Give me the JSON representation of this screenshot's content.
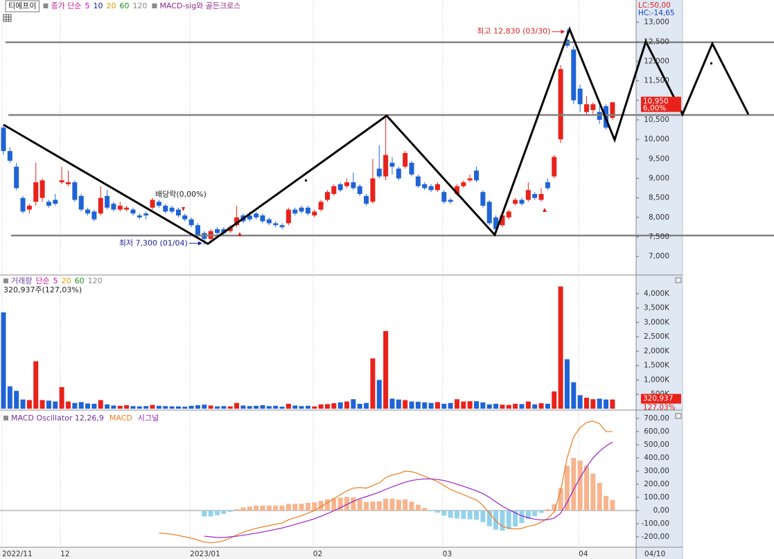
{
  "chart_data": [
    {
      "type": "candlestick",
      "title": "티에프이",
      "legend_title": "종가 단순",
      "legend_title_color": "#c21f9a",
      "ma_legend": [
        {
          "name": "5",
          "color": "#cc00cc"
        },
        {
          "name": "10",
          "color": "#1a1a8c"
        },
        {
          "name": "20",
          "color": "#e0a000"
        },
        {
          "name": "60",
          "color": "#1e8c1e"
        },
        {
          "name": "120",
          "color": "#888888"
        }
      ],
      "indicator": "MACD-sig와 골든크로스",
      "indicator_color": "#8a2a8a",
      "lc_label": "LC:50,00",
      "hc_label": "HC:-14,65",
      "annotations": [
        {
          "text": "최고 12,830 (03/30)",
          "value": 12830,
          "color": "#e02020"
        },
        {
          "text": "최저 7,300 (01/04)",
          "value": 7300,
          "color": "#1a1aa0"
        },
        {
          "text": "배당락(0,00%)"
        }
      ],
      "last_price": {
        "value": 10950,
        "label": "10,950"
      },
      "change_label": "6,00%",
      "cursor_date": "04/10",
      "up_color": "#e8221b",
      "down_color": "#1f63d6",
      "categories": [
        "2022/11",
        null,
        null,
        null,
        null,
        null,
        null,
        null,
        null,
        "12",
        null,
        null,
        null,
        null,
        null,
        null,
        null,
        null,
        null,
        null,
        null,
        null,
        null,
        null,
        null,
        null,
        null,
        null,
        null,
        "2023/01",
        null,
        null,
        null,
        null,
        null,
        null,
        null,
        null,
        null,
        null,
        null,
        null,
        null,
        null,
        null,
        null,
        null,
        null,
        "02",
        null,
        null,
        null,
        null,
        null,
        null,
        null,
        null,
        null,
        null,
        null,
        null,
        null,
        null,
        null,
        null,
        null,
        null,
        null,
        "03",
        null,
        null,
        null,
        null,
        null,
        null,
        null,
        null,
        null,
        null,
        null,
        null,
        null,
        null,
        null,
        null,
        null,
        null,
        null,
        null,
        "04",
        null,
        null,
        null,
        null,
        null
      ],
      "open": [
        10300,
        9700,
        9300,
        8500,
        8200,
        8400,
        8500,
        8400,
        8450,
        8900,
        8850,
        8900,
        8550,
        8200,
        8150,
        8100,
        8550,
        8350,
        8200,
        8200,
        8200,
        8050,
        8100,
        8250,
        8400,
        8300,
        8250,
        8200,
        8050,
        7950,
        7800,
        7600,
        7450,
        7700,
        7700,
        7650,
        7800,
        8050,
        8050,
        8100,
        8050,
        7950,
        7850,
        7800,
        7850,
        8200,
        8250,
        8250,
        8050,
        8200,
        8450,
        8600,
        8850,
        8800,
        8900,
        8800,
        8550,
        8400,
        9250,
        9050,
        9400,
        9250,
        9300,
        9400,
        9050,
        8850,
        8800,
        8700,
        8650,
        8450,
        8600,
        8800,
        8950,
        9200,
        8650,
        8400,
        8000,
        7800,
        8000,
        8350,
        8450,
        8450,
        8600,
        8450,
        8900,
        9050,
        10000,
        12550,
        12300,
        11300,
        10700,
        10750,
        10700,
        10850,
        10550
      ],
      "high": [
        10350,
        9800,
        9400,
        8550,
        8350,
        9400,
        9000,
        8450,
        8600,
        9300,
        9200,
        8950,
        8600,
        8250,
        8200,
        8800,
        8700,
        8400,
        8400,
        8300,
        8250,
        8100,
        8150,
        8500,
        8450,
        8350,
        8300,
        8250,
        8100,
        8000,
        7850,
        7650,
        7700,
        7750,
        7750,
        7800,
        8300,
        8100,
        8150,
        8150,
        8100,
        8000,
        7900,
        7850,
        8250,
        8250,
        8300,
        8300,
        8200,
        8450,
        8700,
        8850,
        8900,
        9000,
        9150,
        8850,
        8600,
        9500,
        9850,
        10600,
        9550,
        9300,
        9700,
        9450,
        9100,
        8900,
        8850,
        8900,
        8700,
        8500,
        8850,
        8950,
        9100,
        9300,
        8700,
        8450,
        8050,
        8100,
        8200,
        8500,
        8500,
        8900,
        8650,
        8750,
        9000,
        9600,
        11900,
        12830,
        12400,
        11400,
        11100,
        10950,
        10850,
        10900,
        10950
      ],
      "low": [
        9600,
        9400,
        8700,
        8100,
        8100,
        8300,
        8400,
        8250,
        8300,
        8850,
        8800,
        8400,
        8150,
        8050,
        7900,
        8050,
        8200,
        8150,
        8150,
        8150,
        8050,
        7950,
        7950,
        8200,
        8250,
        8100,
        8100,
        8000,
        7900,
        7750,
        7500,
        7300,
        7400,
        7550,
        7550,
        7600,
        7750,
        7850,
        7900,
        7950,
        7850,
        7800,
        7750,
        7700,
        7800,
        8050,
        8100,
        8050,
        8000,
        8150,
        8400,
        8550,
        8650,
        8750,
        8700,
        8550,
        8300,
        8350,
        9000,
        8950,
        9100,
        8950,
        9250,
        9050,
        8750,
        8700,
        8650,
        8650,
        8350,
        8350,
        8550,
        8750,
        8900,
        8900,
        8250,
        7800,
        7600,
        7750,
        7950,
        8300,
        8300,
        8400,
        8450,
        8400,
        8700,
        9000,
        9900,
        12350,
        10900,
        10700,
        10650,
        10650,
        10400,
        10250,
        10500
      ],
      "close": [
        9700,
        9450,
        8750,
        8150,
        8300,
        8900,
        8950,
        8300,
        8350,
        8950,
        8900,
        8450,
        8200,
        8100,
        7950,
        8500,
        8250,
        8200,
        8300,
        8250,
        8100,
        8000,
        8050,
        8450,
        8300,
        8150,
        8150,
        8050,
        7950,
        7800,
        7550,
        7450,
        7650,
        7600,
        7600,
        7750,
        8000,
        7900,
        7950,
        8000,
        7900,
        7850,
        7800,
        7750,
        8200,
        8100,
        8150,
        8100,
        8150,
        8400,
        8650,
        8800,
        8700,
        8900,
        8750,
        8600,
        8350,
        9000,
        9050,
        9600,
        9300,
        9000,
        9650,
        9100,
        8800,
        8750,
        8700,
        8850,
        8400,
        8400,
        8800,
        8900,
        9000,
        8950,
        8300,
        7850,
        7700,
        8050,
        8150,
        8450,
        8350,
        8700,
        8500,
        8600,
        8750,
        9550,
        11800,
        12400,
        11000,
        10900,
        10900,
        10900,
        10500,
        10300,
        10950
      ],
      "ylim": [
        6560,
        13570
      ],
      "yticks": [
        {
          "value": 13000,
          "label": "13,000"
        },
        {
          "value": 12500,
          "label": "12,500"
        },
        {
          "value": 12000,
          "label": "12,000"
        },
        {
          "value": 11500,
          "label": "11,500"
        },
        {
          "value": 11000,
          "label": "11,000"
        },
        {
          "value": 10500,
          "label": "10,500"
        },
        {
          "value": 10000,
          "label": "10,000"
        },
        {
          "value": 9500,
          "label": "9,500"
        },
        {
          "value": 9000,
          "label": "9,000"
        },
        {
          "value": 8500,
          "label": "8,500"
        },
        {
          "value": 8000,
          "label": "8,000"
        },
        {
          "value": 7500,
          "label": "7,500"
        },
        {
          "value": 7000,
          "label": "7,000"
        }
      ]
    },
    {
      "type": "bar",
      "title": "거래량",
      "title_color": "#6a3da8",
      "legend_title": "단순",
      "legend_title_color": "#c21f9a",
      "ma_legend": [
        {
          "name": "5",
          "color": "#cc00cc"
        },
        {
          "name": "20",
          "color": "#e0a000"
        },
        {
          "name": "60",
          "color": "#1e8c1e"
        },
        {
          "name": "120",
          "color": "#888888"
        }
      ],
      "subtitle": "320,937주(127,03%)",
      "last_value": {
        "value": 320937,
        "label": "320,937"
      },
      "change_label": "127,03%",
      "values": [
        3350000,
        780000,
        620000,
        320000,
        300000,
        1650000,
        300000,
        280000,
        250000,
        750000,
        250000,
        200000,
        230000,
        180000,
        170000,
        300000,
        150000,
        110000,
        100000,
        120000,
        90000,
        80000,
        90000,
        130000,
        100000,
        90000,
        80000,
        80000,
        70000,
        100000,
        120000,
        140000,
        110000,
        80000,
        90000,
        80000,
        200000,
        110000,
        90000,
        100000,
        120000,
        90000,
        100000,
        70000,
        170000,
        110000,
        90000,
        100000,
        80000,
        150000,
        160000,
        190000,
        220000,
        250000,
        330000,
        170000,
        200000,
        1750000,
        1000000,
        2700000,
        350000,
        320000,
        300000,
        250000,
        240000,
        220000,
        200000,
        230000,
        170000,
        200000,
        330000,
        250000,
        260000,
        260000,
        220000,
        150000,
        170000,
        140000,
        130000,
        170000,
        160000,
        250000,
        150000,
        190000,
        170000,
        600000,
        4250000,
        1720000,
        920000,
        470000,
        380000,
        330000,
        350000,
        320000,
        320937
      ],
      "ylim": [
        0,
        4602000
      ],
      "yticks": [
        {
          "value": 500000,
          "label": "500K"
        },
        {
          "value": 1000000,
          "label": "1,000K"
        },
        {
          "value": 1500000,
          "label": "1,500K"
        },
        {
          "value": 2000000,
          "label": "2,000K"
        },
        {
          "value": 2500000,
          "label": "2,500K"
        },
        {
          "value": 3000000,
          "label": "3,000K"
        },
        {
          "value": 3500000,
          "label": "3,500K"
        },
        {
          "value": 4000000,
          "label": "4,000K"
        }
      ]
    },
    {
      "type": "combo",
      "zero_line": true,
      "series": [
        {
          "name": "MACD Oscillator 12,26,9",
          "type": "bar",
          "color": "#f7b48e",
          "negative_color": "#94d2ec",
          "label_color": "#7030a0",
          "values": [
            null,
            null,
            null,
            null,
            null,
            null,
            null,
            null,
            null,
            null,
            null,
            null,
            null,
            null,
            null,
            null,
            null,
            null,
            null,
            null,
            null,
            null,
            null,
            null,
            null,
            null,
            null,
            null,
            null,
            null,
            null,
            -45,
            -45,
            -35,
            -25,
            -10,
            10,
            23,
            30,
            37,
            38,
            38,
            38,
            38,
            50,
            51,
            52,
            58,
            62,
            74,
            84,
            92,
            98,
            104,
            100,
            85,
            64,
            68,
            70,
            90,
            90,
            82,
            85,
            67,
            44,
            20,
            -5,
            -16,
            -38,
            -55,
            -60,
            -64,
            -67,
            -70,
            -88,
            -120,
            -146,
            -153,
            -141,
            -122,
            -95,
            -65,
            -44,
            -18,
            10,
            48,
            170,
            340,
            400,
            380,
            340,
            280,
            210,
            110,
            80
          ]
        },
        {
          "name": "MACD",
          "type": "line",
          "color": "#f07a1e",
          "values": [
            null,
            null,
            null,
            null,
            null,
            null,
            null,
            null,
            null,
            null,
            null,
            null,
            null,
            null,
            null,
            null,
            null,
            null,
            null,
            null,
            null,
            null,
            null,
            null,
            -170,
            -175,
            -180,
            -190,
            -200,
            -210,
            -225,
            -240,
            -245,
            -240,
            -230,
            -210,
            -185,
            -165,
            -150,
            -135,
            -125,
            -115,
            -105,
            -95,
            -70,
            -55,
            -40,
            -20,
            0,
            30,
            60,
            90,
            120,
            150,
            170,
            175,
            170,
            190,
            210,
            250,
            270,
            280,
            300,
            295,
            280,
            260,
            240,
            220,
            190,
            160,
            140,
            120,
            100,
            80,
            40,
            -20,
            -80,
            -120,
            -135,
            -140,
            -135,
            -120,
            -110,
            -90,
            -60,
            -10,
            150,
            400,
            560,
            630,
            670,
            680,
            660,
            600,
            600
          ]
        },
        {
          "name": "시그널",
          "type": "line",
          "color": "#9a1fc4",
          "values": [
            null,
            null,
            null,
            null,
            null,
            null,
            null,
            null,
            null,
            null,
            null,
            null,
            null,
            null,
            null,
            null,
            null,
            null,
            null,
            null,
            null,
            null,
            null,
            null,
            null,
            null,
            null,
            null,
            null,
            null,
            null,
            -195,
            -200,
            -205,
            -205,
            -200,
            -195,
            -188,
            -180,
            -172,
            -163,
            -153,
            -143,
            -133,
            -120,
            -106,
            -92,
            -78,
            -62,
            -44,
            -24,
            -2,
            22,
            46,
            70,
            90,
            106,
            122,
            140,
            160,
            180,
            198,
            215,
            228,
            236,
            240,
            240,
            236,
            228,
            215,
            200,
            184,
            167,
            150,
            128,
            100,
            66,
            33,
            6,
            -18,
            -40,
            -55,
            -66,
            -72,
            -70,
            -58,
            -20,
            60,
            160,
            250,
            330,
            400,
            450,
            490,
            520
          ]
        }
      ],
      "ylim": [
        -279,
        753
      ],
      "yticks": [
        {
          "value": 700,
          "label": "700,00"
        },
        {
          "value": 600,
          "label": "600,00"
        },
        {
          "value": 500,
          "label": "500,00"
        },
        {
          "value": 400,
          "label": "400,00"
        },
        {
          "value": 300,
          "label": "300,00"
        },
        {
          "value": 200,
          "label": "200,00"
        },
        {
          "value": 100,
          "label": "100,00"
        },
        {
          "value": 0,
          "label": "0,00"
        },
        {
          "value": -100,
          "label": "-100,00"
        },
        {
          "value": -200,
          "label": "-200,00"
        }
      ]
    }
  ]
}
